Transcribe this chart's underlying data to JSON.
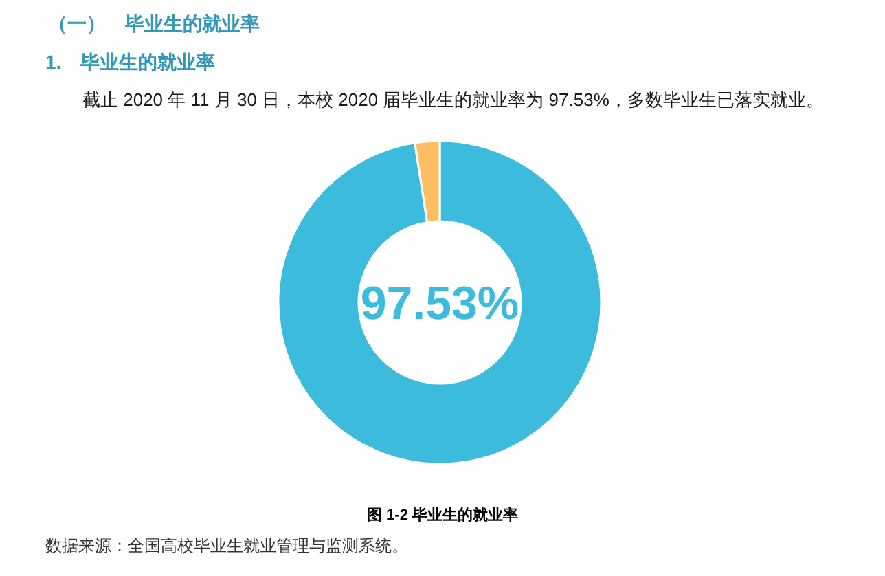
{
  "chart_data": {
    "type": "donut",
    "title": "（一）　毕业生的就业率",
    "subtitle": "1.　毕业生的就业率",
    "categories": [
      null,
      null
    ],
    "values": [
      97.53,
      2.47
    ],
    "colors": [
      "#3dbbdc",
      "#fdbf64"
    ],
    "value_labels": [
      "97.53%",
      null
    ],
    "annotations": [
      "截止 2020 年 11 月 30 日，本校 2020 届毕业生的就业率为 97.53%，多数毕业生已落实就业。",
      "图 1-2 毕业生的就业率",
      "数据来源：全国高校毕业生就业管理与监测系统。"
    ]
  }
}
